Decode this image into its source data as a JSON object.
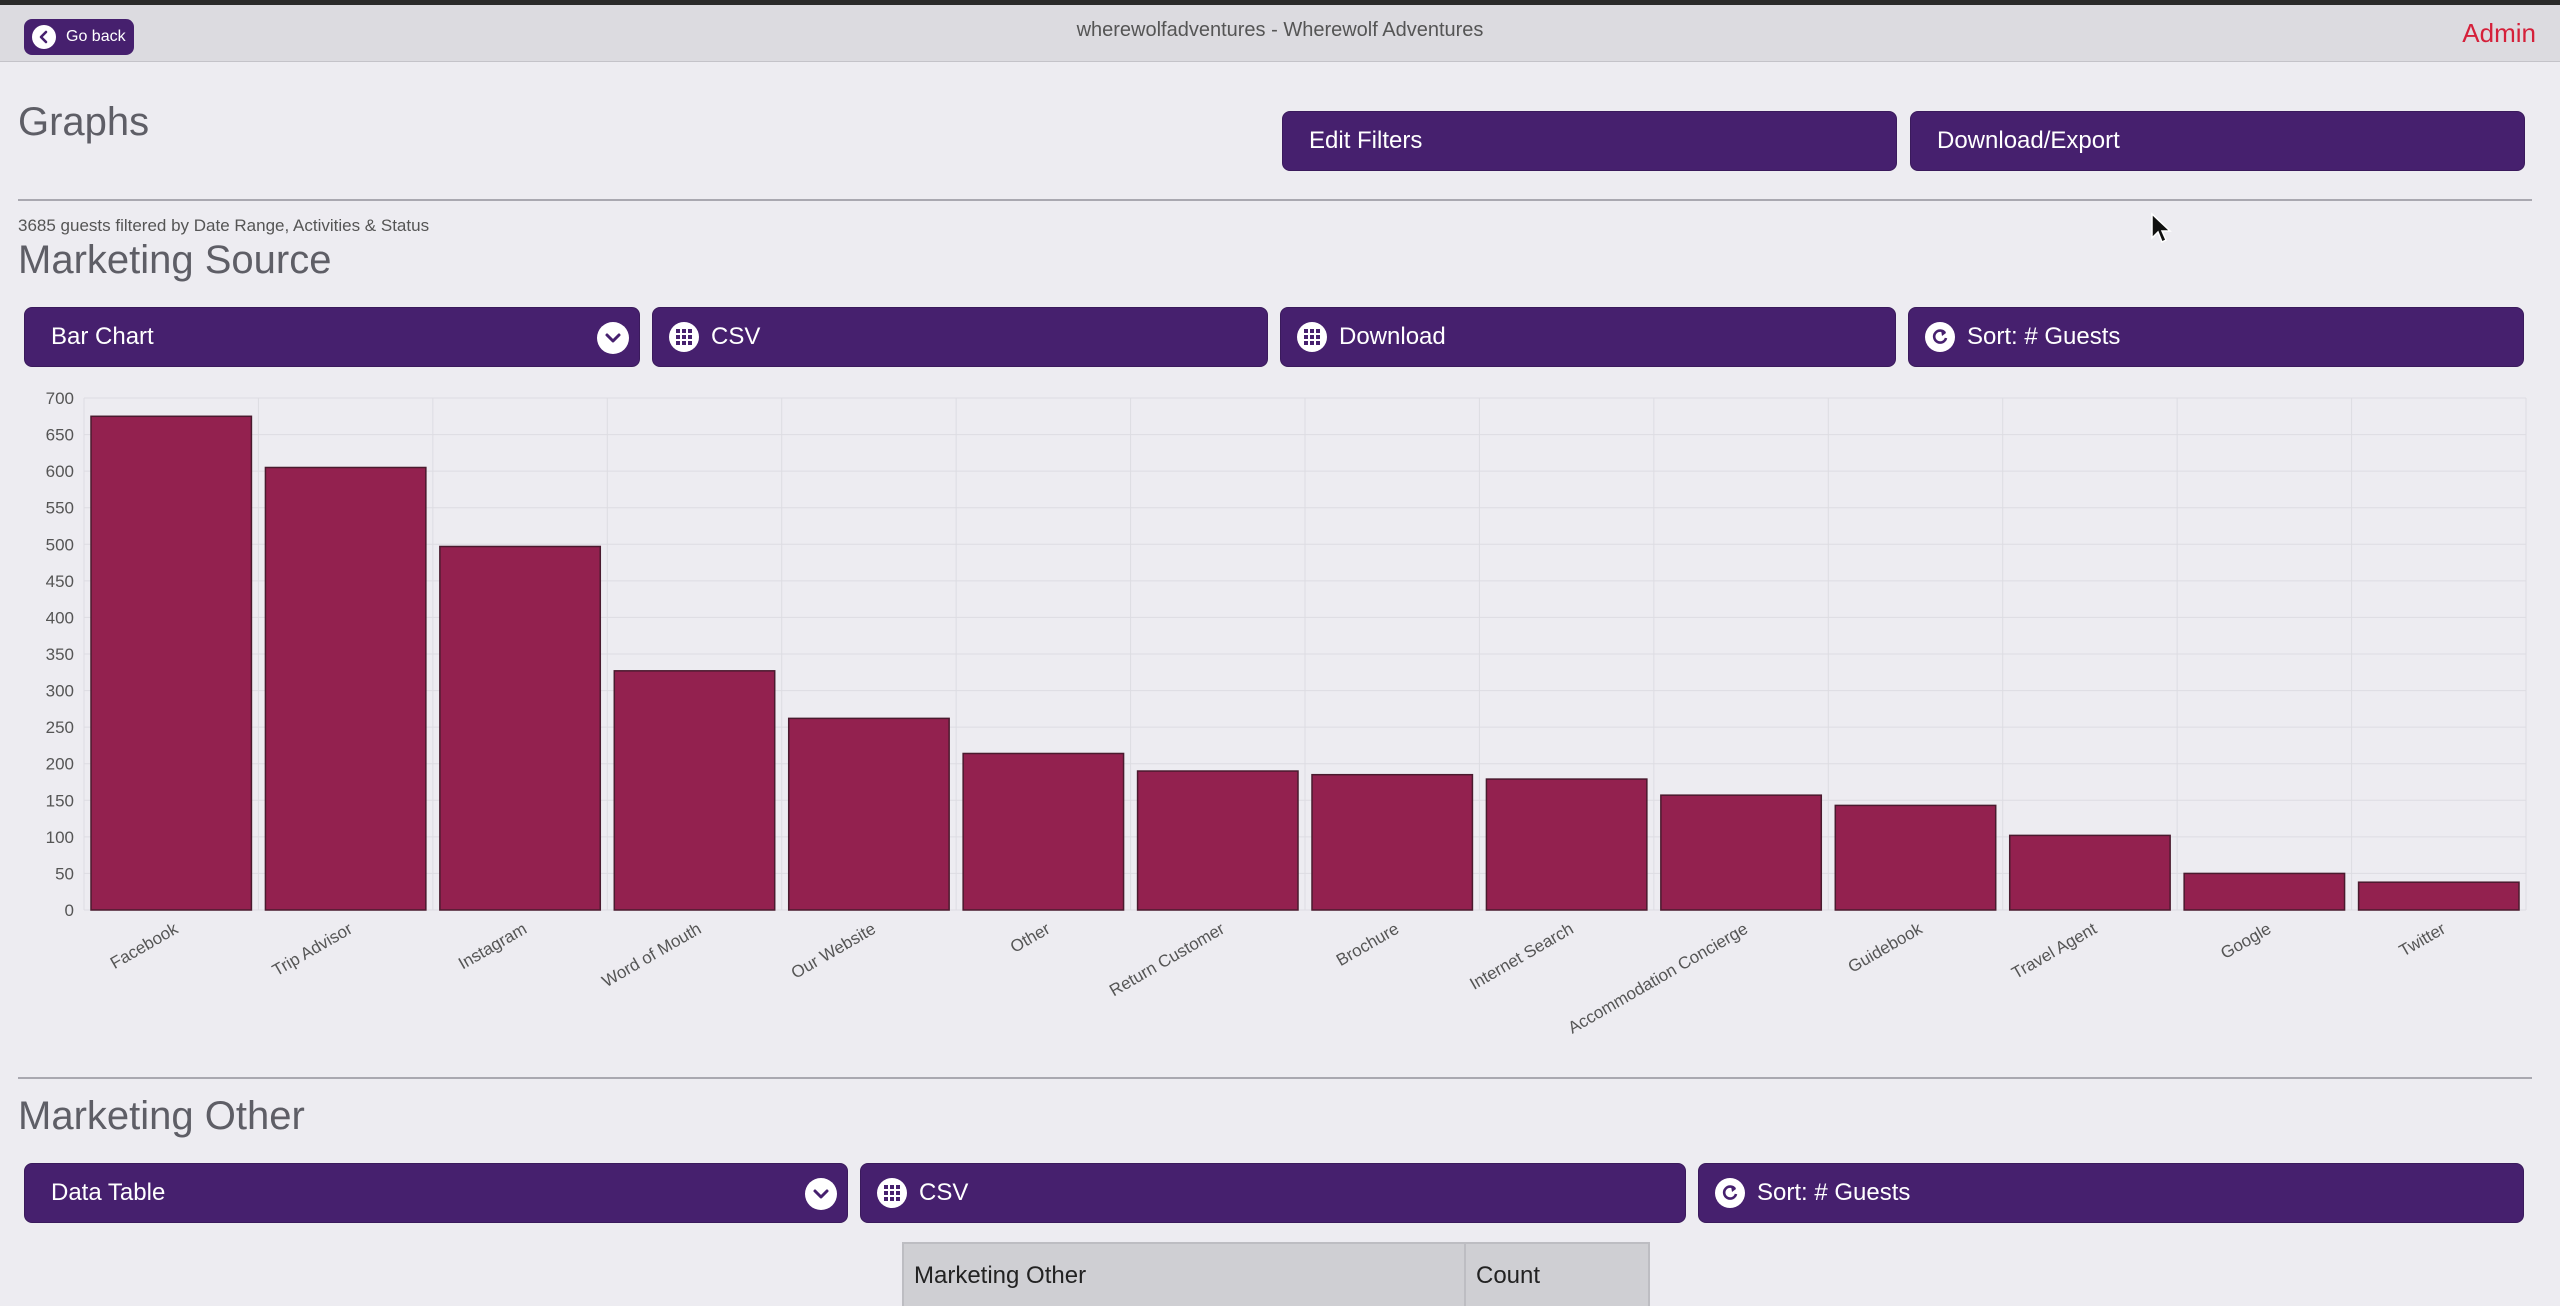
{
  "topbar": {
    "back_label": "Go back",
    "title": "wherewolfadventures - Wherewolf Adventures",
    "admin_label": "Admin"
  },
  "page": {
    "heading": "Graphs",
    "edit_filters_label": "Edit Filters",
    "download_export_label": "Download/Export",
    "filter_note": "3685 guests filtered by Date Range, Activities & Status"
  },
  "marketing_source": {
    "heading": "Marketing Source",
    "chart_type_label": "Bar Chart",
    "csv_label": "CSV",
    "download_label": "Download",
    "sort_label": "Sort: # Guests"
  },
  "marketing_other": {
    "heading": "Marketing Other",
    "view_type_label": "Data Table",
    "csv_label": "CSV",
    "sort_label": "Sort: # Guests",
    "table": {
      "columns": [
        "Marketing Other",
        "Count"
      ]
    }
  },
  "colors": {
    "accent": "#46206e",
    "bar": "#93214f",
    "admin": "#d5203a"
  },
  "icons": {
    "back": "chevron-left-icon",
    "dropdown": "chevron-down-icon",
    "grid": "grid-icon",
    "sort": "refresh-icon"
  },
  "chart_data": {
    "type": "bar",
    "categories": [
      "Facebook",
      "Trip Advisor",
      "Instagram",
      "Word of Mouth",
      "Our Website",
      "Other",
      "Return Customer",
      "Brochure",
      "Internet Search",
      "Accommodation Concierge",
      "Guidebook",
      "Travel Agent",
      "Google",
      "Twitter"
    ],
    "values": [
      675,
      605,
      497,
      327,
      262,
      214,
      190,
      185,
      179,
      157,
      143,
      102,
      50,
      38
    ],
    "yticks": [
      0,
      50,
      100,
      150,
      200,
      250,
      300,
      350,
      400,
      450,
      500,
      550,
      600,
      650,
      700
    ],
    "ylim": [
      0,
      700
    ],
    "grid": true,
    "title": "",
    "xlabel": "",
    "ylabel": ""
  }
}
